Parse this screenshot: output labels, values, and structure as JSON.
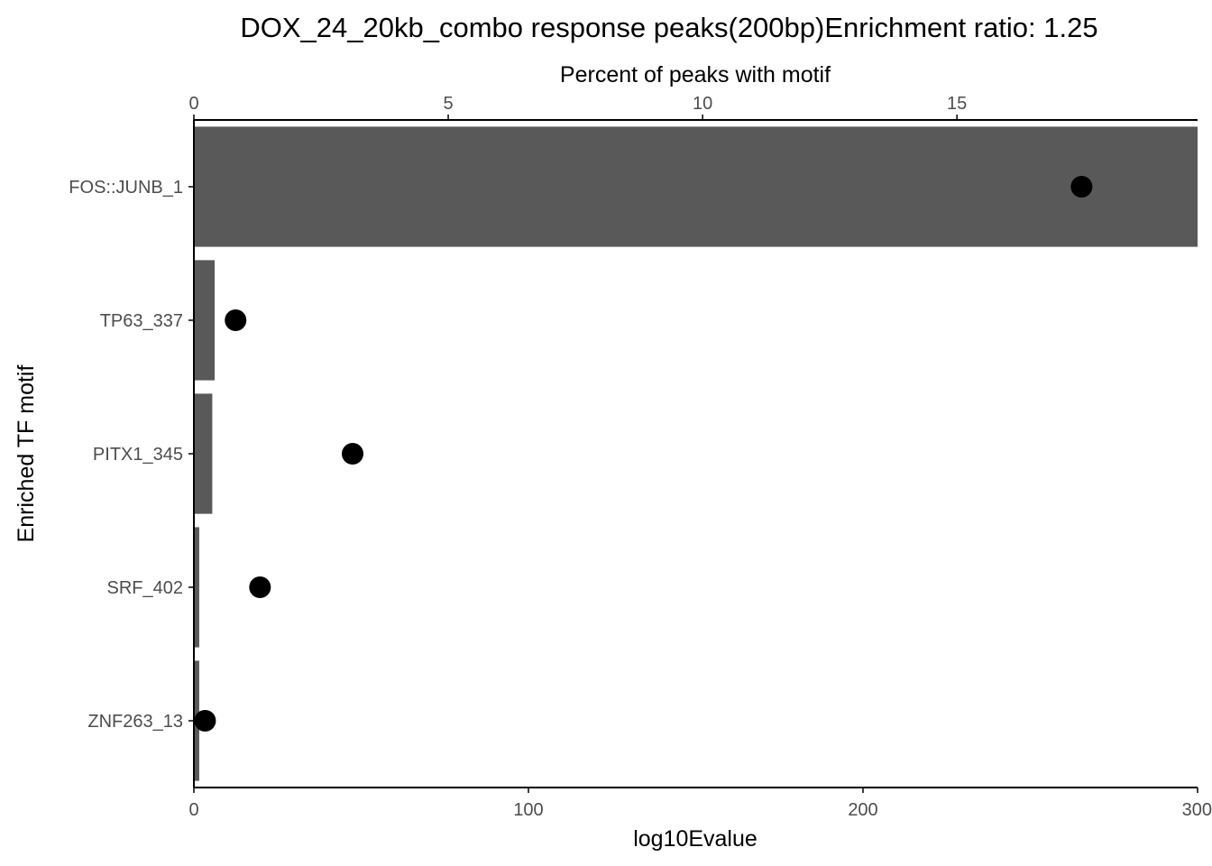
{
  "chart_data": {
    "type": "bar",
    "title": "DOX_24_20kb_combo response peaks(200bp)Enrichment ratio: 1.25",
    "ylabel": "Enriched TF motif",
    "categories": [
      "FOS::JUNB_1",
      "TP63_337",
      "PITX1_345",
      "SRF_402",
      "ZNF263_13"
    ],
    "series": [
      {
        "mark": "bar",
        "axis": "bottom",
        "values": [
          300,
          6.2,
          5.5,
          1.6,
          1.6
        ]
      },
      {
        "mark": "point",
        "axis": "top",
        "values": [
          17.45,
          0.82,
          3.12,
          1.3,
          0.22
        ]
      }
    ],
    "x_bottom": {
      "label": "log10Evalue",
      "range": [
        0,
        300
      ],
      "ticks": [
        0,
        100,
        200,
        300
      ],
      "tick_labels": [
        "0",
        "100",
        "200",
        "300"
      ]
    },
    "x_top": {
      "label": "Percent of peaks with motif",
      "range": [
        0,
        19.73
      ],
      "ticks": [
        0,
        5,
        10,
        15
      ],
      "tick_labels": [
        "0",
        "5",
        "10",
        "15"
      ]
    },
    "grid": false,
    "legend": "none",
    "colors": {
      "bar": "#595959",
      "point": "#000000",
      "axis": "#000000",
      "tick_text": "#4d4d4d",
      "text": "#000000"
    }
  }
}
